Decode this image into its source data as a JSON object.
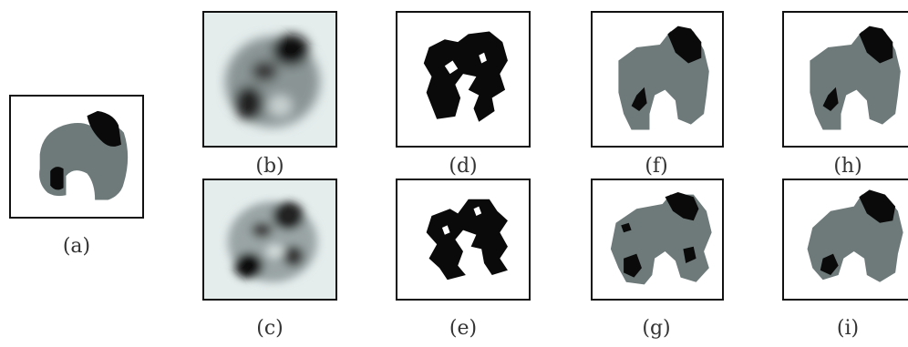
{
  "figure": {
    "labels": {
      "a": "(a)",
      "b": "(b)",
      "c": "(c)",
      "d": "(d)",
      "e": "(e)",
      "f": "(f)",
      "g": "(g)",
      "h": "(h)",
      "i": "(i)"
    },
    "colors": {
      "gray": "#6e7a7a",
      "black": "#0a0a0a",
      "blur_bg": "#e4ecec"
    }
  }
}
